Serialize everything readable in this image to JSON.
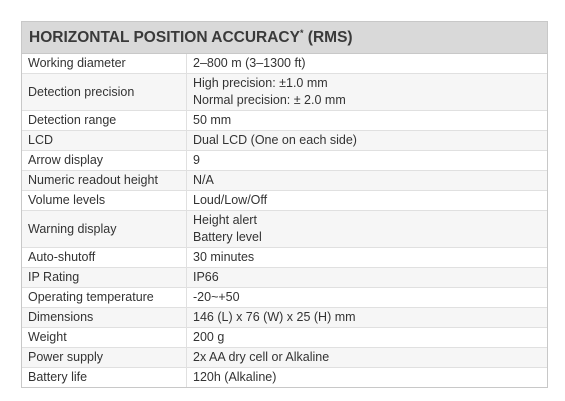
{
  "table": {
    "title": "HORIZONTAL POSITION ACCURACY",
    "title_mark": "*",
    "title_suffix": "(RMS)",
    "rows": [
      [
        "Working diameter",
        [
          "2–800 m (3–1300 ft)"
        ]
      ],
      [
        "Detection precision",
        [
          "High precision: ±1.0 mm",
          "Normal precision: ± 2.0 mm"
        ]
      ],
      [
        "Detection range",
        [
          "50 mm"
        ]
      ],
      [
        "LCD",
        [
          "Dual LCD (One on each side)"
        ]
      ],
      [
        "Arrow display",
        [
          "9"
        ]
      ],
      [
        "Numeric readout height",
        [
          "N/A"
        ]
      ],
      [
        "Volume levels",
        [
          "Loud/Low/Off"
        ]
      ],
      [
        "Warning display",
        [
          "Height alert",
          "Battery level"
        ]
      ],
      [
        "Auto-shutoff",
        [
          "30 minutes"
        ]
      ],
      [
        "IP Rating",
        [
          "IP66"
        ]
      ],
      [
        "Operating temperature",
        [
          "-20~+50"
        ]
      ],
      [
        "Dimensions",
        [
          "146 (L) x 76 (W) x 25 (H) mm"
        ]
      ],
      [
        "Weight",
        [
          "200 g"
        ]
      ],
      [
        "Power supply",
        [
          "2x AA dry cell or Alkaline"
        ]
      ],
      [
        "Battery life",
        [
          "120h (Alkaline)"
        ]
      ]
    ]
  }
}
